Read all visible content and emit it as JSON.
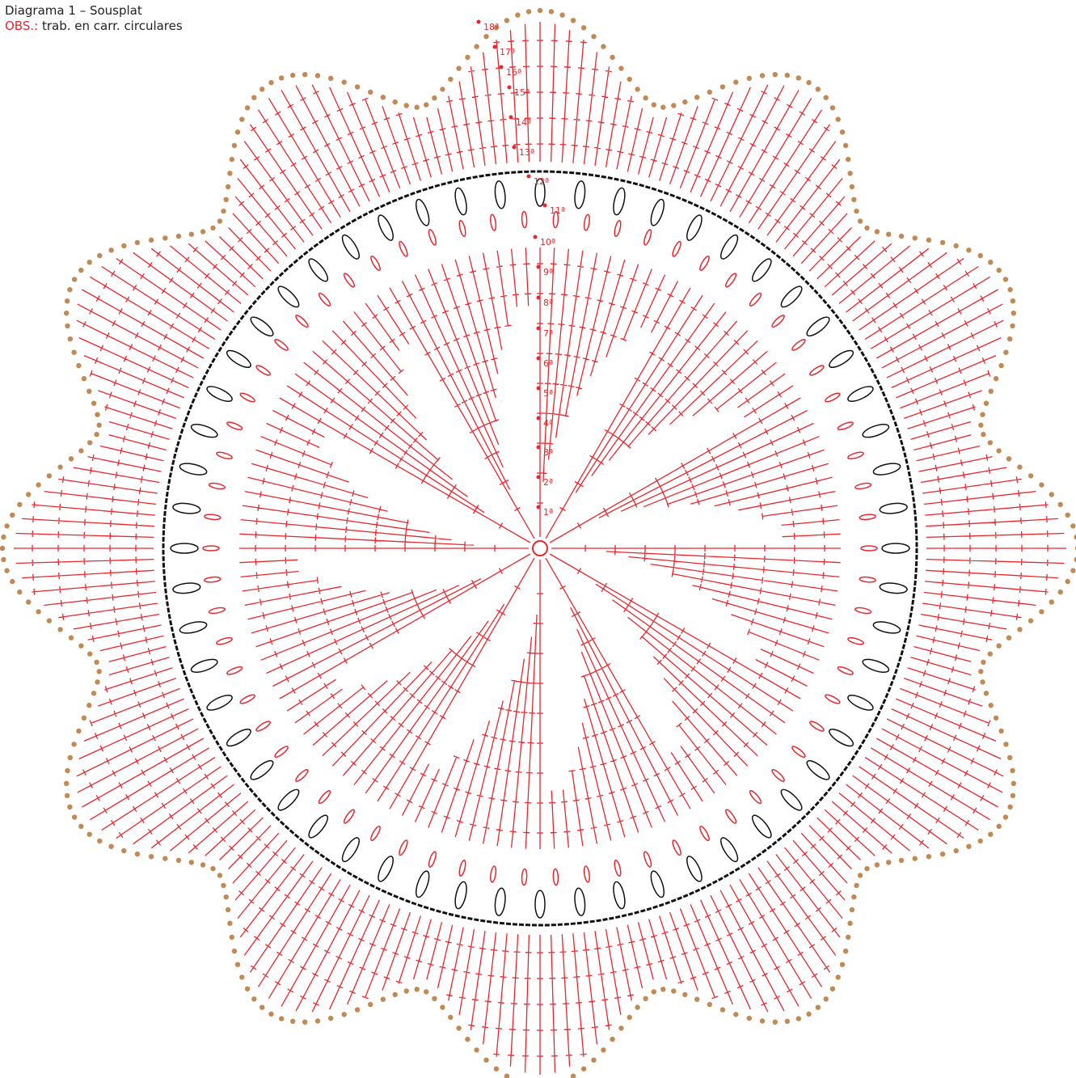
{
  "header": {
    "title": "Diagrama 1 – Sousplat",
    "note_label": "OBS.:",
    "note_text": "trab. en carr. circulares"
  },
  "rounds": [
    "1ª",
    "2ª",
    "3ª",
    "4ª",
    "5ª",
    "6ª",
    "7ª",
    "8ª",
    "9ª",
    "10ª",
    "11ª",
    "12ª",
    "13ª",
    "14ª",
    "15ª",
    "16ª",
    "17ª",
    "18ª"
  ]
}
